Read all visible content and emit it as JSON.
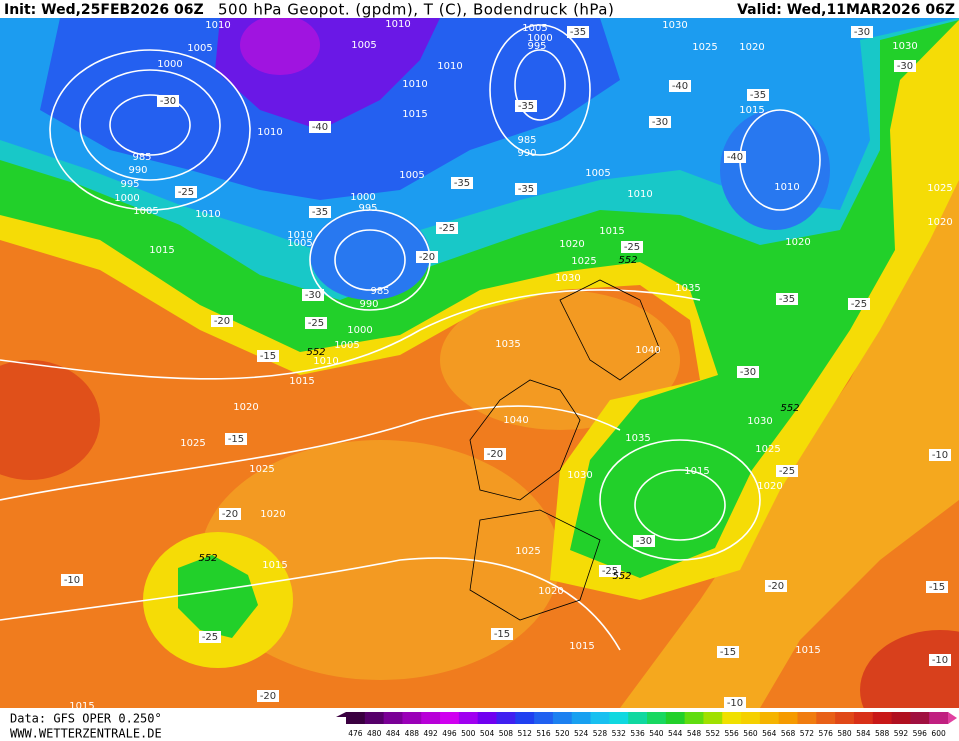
{
  "header": {
    "init": "Init: Wed,25FEB2026 06Z",
    "title": "500 hPa Geopot. (gpdm), T (C), Bodendruck (hPa)",
    "valid": "Valid: Wed,11MAR2026 06Z"
  },
  "footer": {
    "data_source": "Data: GFS OPER 0.250°",
    "website": "WWW.WETTERZENTRALE.DE"
  },
  "colorbar": {
    "labels": [
      "476",
      "480",
      "484",
      "488",
      "492",
      "496",
      "500",
      "504",
      "508",
      "512",
      "516",
      "520",
      "524",
      "528",
      "532",
      "536",
      "540",
      "544",
      "548",
      "552",
      "556",
      "560",
      "564",
      "568",
      "572",
      "576",
      "580",
      "584",
      "588",
      "592",
      "596",
      "600"
    ]
  },
  "map": {
    "isobar_labels": [
      "1010",
      "1005",
      "1000",
      "1010",
      "1005",
      "1010",
      "1010",
      "1015",
      "1005",
      "1000",
      "995",
      "1030",
      "1025",
      "1020",
      "1030",
      "1015",
      "1010",
      "985",
      "990",
      "995",
      "1000",
      "1005",
      "1010",
      "985",
      "990",
      "1005",
      "1005",
      "1010",
      "1010",
      "1020",
      "1025",
      "1020",
      "1015",
      "1015",
      "1020",
      "1025",
      "1030",
      "1035",
      "985",
      "990",
      "1000",
      "1005",
      "1010",
      "1015",
      "1020",
      "1025",
      "1035",
      "1040",
      "1040",
      "1035",
      "1030",
      "1025",
      "1020",
      "1015",
      "1030",
      "1025",
      "1020",
      "1015",
      "1025",
      "1020",
      "1015",
      "1015",
      "1015",
      "1000",
      "995",
      "1010",
      "1005"
    ],
    "temp_labels": [
      "-30",
      "-25",
      "-20",
      "-15",
      "-15",
      "-20",
      "-20",
      "-10",
      "-25",
      "-20",
      "-15",
      "-15",
      "-10",
      "-20",
      "-25",
      "-30",
      "-25",
      "-25",
      "-30",
      "-35",
      "-40",
      "-35",
      "-40",
      "-30",
      "-35",
      "-35",
      "-35",
      "-40",
      "-35",
      "-30",
      "-25",
      "-25",
      "-20",
      "-25",
      "-35",
      "-30",
      "-30",
      "-15",
      "-10",
      "-10"
    ],
    "height_labels": [
      "552",
      "552",
      "552",
      "552",
      "552"
    ]
  }
}
